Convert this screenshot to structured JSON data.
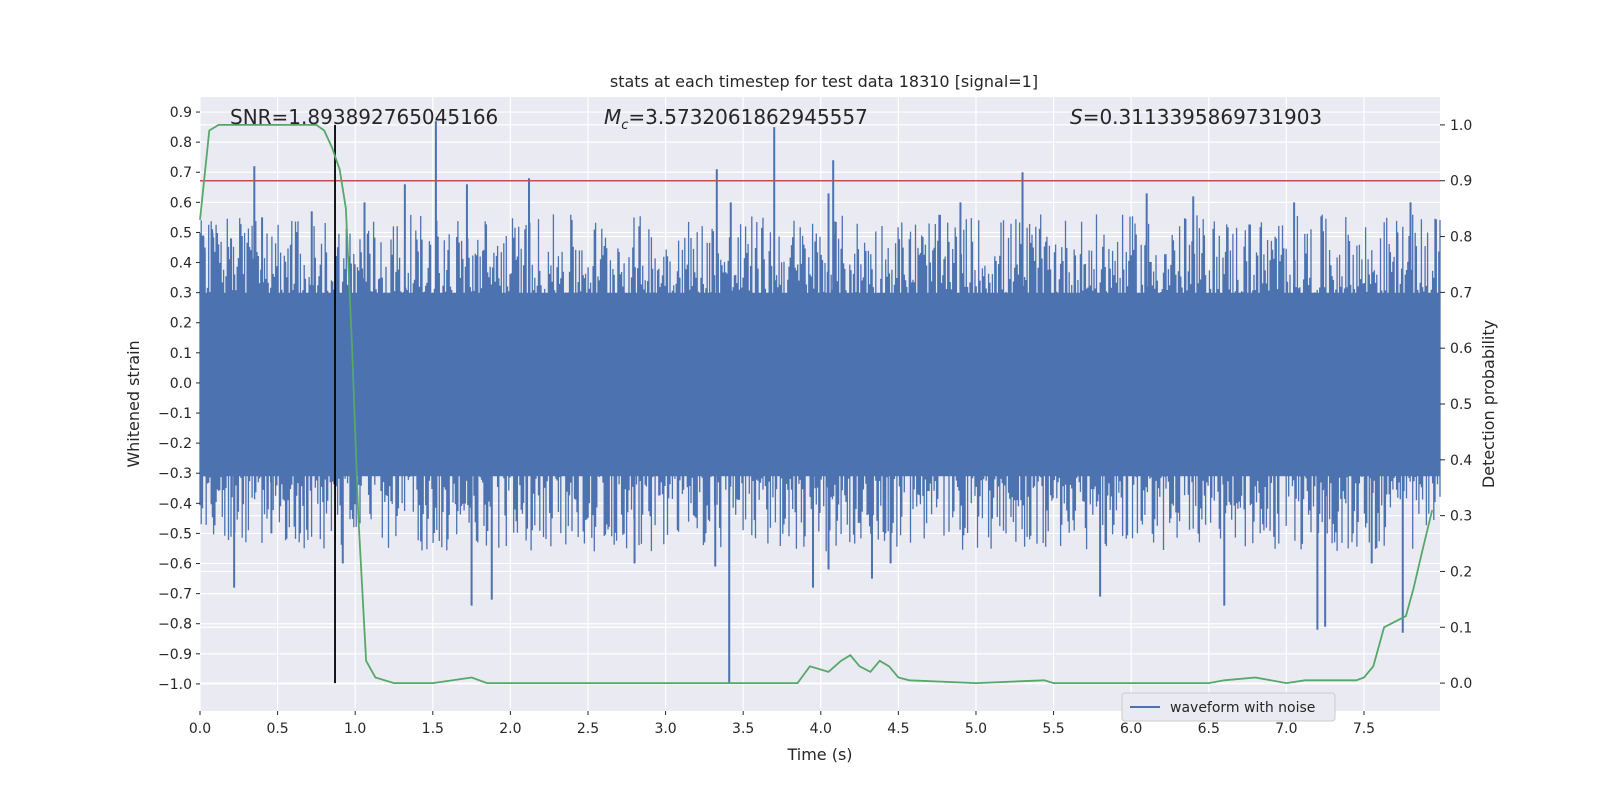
{
  "chart_data": {
    "type": "line",
    "title": "stats at each timestep for test data 18310 [signal=1]",
    "xlabel": "Time (s)",
    "ylabel_left": "Whitened strain",
    "ylabel_right": "Detection probability",
    "xlim": [
      0.0,
      7.99
    ],
    "ylim_left": [
      -1.09,
      0.95
    ],
    "ylim_right": [
      -0.05,
      1.05
    ],
    "xticks": [
      "0.0",
      "0.5",
      "1.0",
      "1.5",
      "2.0",
      "2.5",
      "3.0",
      "3.5",
      "4.0",
      "4.5",
      "5.0",
      "5.5",
      "6.0",
      "6.5",
      "7.0",
      "7.5"
    ],
    "yticks_left": [
      "−1.0",
      "−0.9",
      "−0.8",
      "−0.7",
      "−0.6",
      "−0.5",
      "−0.4",
      "−0.3",
      "−0.2",
      "−0.1",
      "0.0",
      "0.1",
      "0.2",
      "0.3",
      "0.4",
      "0.5",
      "0.6",
      "0.7",
      "0.8",
      "0.9"
    ],
    "yticks_right": [
      "0.0",
      "0.1",
      "0.2",
      "0.3",
      "0.4",
      "0.5",
      "0.6",
      "0.7",
      "0.8",
      "0.9",
      "1.0"
    ],
    "grid": true,
    "legend_position": "lower-right",
    "annotations": {
      "snr": "SNR=1.893892765045166",
      "mc_symbol": "M",
      "mc_sub": "c",
      "mc_value": "=3.5732061862945557",
      "s_symbol": "S",
      "s_value": "=0.3113395869731903"
    },
    "threshold": 0.9,
    "marker_time": 0.87,
    "series": [
      {
        "name": "waveform with noise",
        "color": "#4c72b0",
        "axis": "left",
        "band_core": [
          -0.31,
          0.3
        ],
        "peaks": [
          {
            "x": 0.03,
            "y": 0.45
          },
          {
            "x": 0.08,
            "y": 0.5
          },
          {
            "x": 0.2,
            "y": 0.48
          },
          {
            "x": 0.35,
            "y": 0.72
          },
          {
            "x": 0.4,
            "y": 0.55
          },
          {
            "x": 0.72,
            "y": 0.57
          },
          {
            "x": 1.06,
            "y": 0.6
          },
          {
            "x": 1.32,
            "y": 0.66
          },
          {
            "x": 1.52,
            "y": 0.87
          },
          {
            "x": 1.72,
            "y": 0.66
          },
          {
            "x": 2.12,
            "y": 0.68
          },
          {
            "x": 3.33,
            "y": 0.71
          },
          {
            "x": 3.42,
            "y": 0.6
          },
          {
            "x": 3.7,
            "y": 0.85
          },
          {
            "x": 4.05,
            "y": 0.63
          },
          {
            "x": 4.08,
            "y": 0.74
          },
          {
            "x": 4.9,
            "y": 0.6
          },
          {
            "x": 5.3,
            "y": 0.7
          },
          {
            "x": 6.1,
            "y": 0.63
          },
          {
            "x": 6.4,
            "y": 0.62
          },
          {
            "x": 7.05,
            "y": 0.6
          },
          {
            "x": 7.8,
            "y": 0.6
          }
        ],
        "troughs": [
          {
            "x": 0.22,
            "y": -0.68
          },
          {
            "x": 0.46,
            "y": -0.5
          },
          {
            "x": 0.92,
            "y": -0.6
          },
          {
            "x": 1.75,
            "y": -0.74
          },
          {
            "x": 1.88,
            "y": -0.72
          },
          {
            "x": 2.8,
            "y": -0.6
          },
          {
            "x": 3.32,
            "y": -0.61
          },
          {
            "x": 3.41,
            "y": -1.0
          },
          {
            "x": 3.95,
            "y": -0.68
          },
          {
            "x": 4.05,
            "y": -0.62
          },
          {
            "x": 4.33,
            "y": -0.65
          },
          {
            "x": 4.45,
            "y": -0.6
          },
          {
            "x": 5.8,
            "y": -0.71
          },
          {
            "x": 6.6,
            "y": -0.74
          },
          {
            "x": 7.2,
            "y": -0.82
          },
          {
            "x": 7.25,
            "y": -0.81
          },
          {
            "x": 7.55,
            "y": -0.6
          },
          {
            "x": 7.75,
            "y": -0.83
          }
        ]
      },
      {
        "name": "",
        "color": "#55a868",
        "axis": "right",
        "x": [
          0.0,
          0.06,
          0.12,
          0.25,
          0.5,
          0.75,
          0.8,
          0.85,
          0.9,
          0.94,
          0.98,
          1.02,
          1.07,
          1.13,
          1.25,
          1.5,
          1.75,
          1.85,
          2.0,
          2.5,
          3.0,
          3.25,
          3.5,
          3.75,
          3.85,
          3.93,
          4.05,
          4.13,
          4.19,
          4.25,
          4.32,
          4.38,
          4.44,
          4.5,
          4.57,
          5.0,
          5.44,
          5.5,
          6.0,
          6.5,
          6.6,
          6.8,
          7.0,
          7.12,
          7.35,
          7.45,
          7.5,
          7.56,
          7.63,
          7.7,
          7.77,
          7.82,
          7.87,
          7.94
        ],
        "y": [
          0.83,
          0.99,
          1.0,
          1.0,
          1.0,
          1.0,
          0.99,
          0.96,
          0.92,
          0.85,
          0.6,
          0.3,
          0.04,
          0.01,
          0.0,
          0.0,
          0.01,
          0.0,
          0.0,
          0.0,
          0.0,
          0.0,
          0.0,
          0.0,
          0.0,
          0.03,
          0.02,
          0.04,
          0.05,
          0.03,
          0.02,
          0.04,
          0.03,
          0.01,
          0.005,
          0.0,
          0.005,
          0.0,
          0.0,
          0.0,
          0.005,
          0.01,
          0.0,
          0.005,
          0.005,
          0.005,
          0.01,
          0.03,
          0.1,
          0.11,
          0.12,
          0.17,
          0.23,
          0.31
        ]
      }
    ]
  }
}
